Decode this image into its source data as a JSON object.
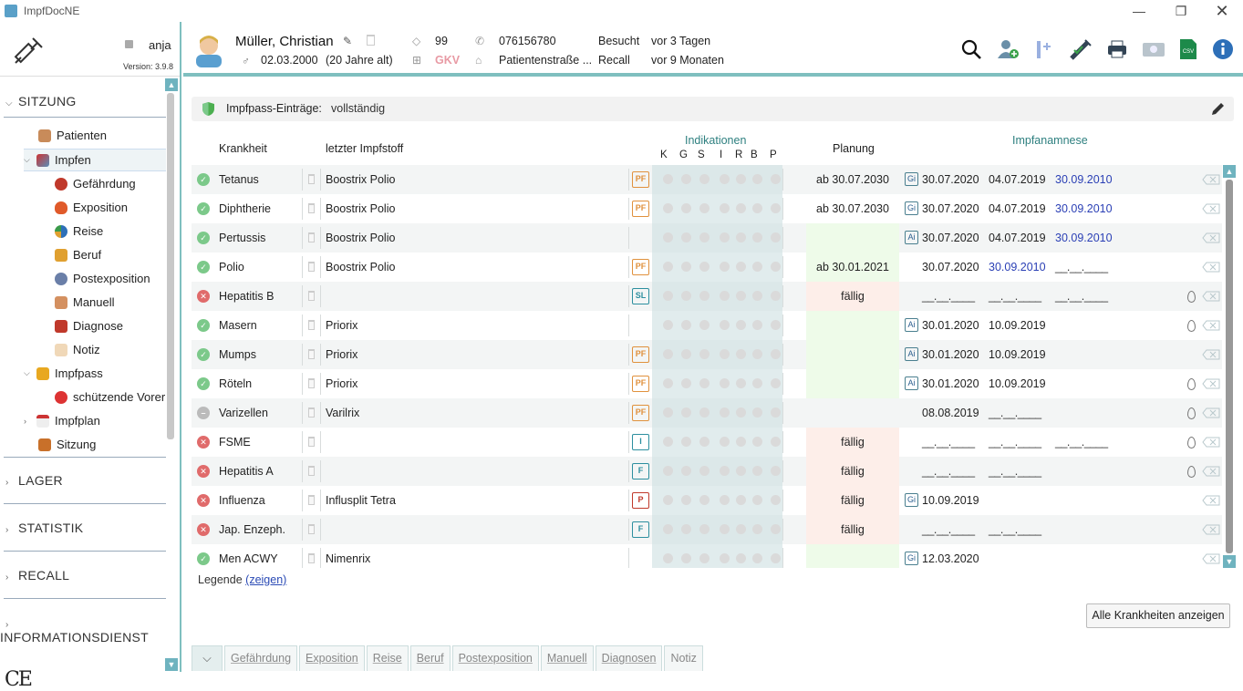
{
  "window": {
    "title": "ImpfDocNE"
  },
  "sidebar": {
    "user": "anja",
    "version": "Version: 3.9.8",
    "sections": {
      "sitzung": "SITZUNG",
      "lager": "LAGER",
      "statistik": "STATISTIK",
      "recall": "RECALL",
      "informationsdienst": "INFORMATIONSDIENST"
    },
    "items": {
      "patienten": "Patienten",
      "impfen": "Impfen",
      "gefaehrdung": "Gefährdung",
      "exposition": "Exposition",
      "reise": "Reise",
      "beruf": "Beruf",
      "postexposition": "Postexposition",
      "manuell": "Manuell",
      "diagnose": "Diagnose",
      "notiz": "Notiz",
      "impfpass": "Impfpass",
      "schuetzende": "schützende Vorer",
      "impfplan": "Impfplan",
      "sitzung": "Sitzung"
    },
    "ce_mark": "CE"
  },
  "patient": {
    "name": "Müller, Christian",
    "dob": "02.03.2000",
    "age": "(20 Jahre alt)",
    "id": "99",
    "insurance": "GKV",
    "phone": "076156780",
    "address": "Patientenstraße ...",
    "besucht_label": "Besucht",
    "besucht_value": "vor 3 Tagen",
    "recall_label": "Recall",
    "recall_value": "vor 9 Monaten"
  },
  "status": {
    "label": "Impfpass-Einträge:",
    "value": "vollständig"
  },
  "table": {
    "headers": {
      "krankheit": "Krankheit",
      "impfstoff": "letzter Impfstoff",
      "indikationen": "Indikationen",
      "planung": "Planung",
      "anamnese": "Impfanamnese",
      "indic_letters": [
        "K",
        "G",
        "S",
        "I",
        "R",
        "B",
        "P"
      ]
    },
    "rows": [
      {
        "status": "ok",
        "name": "Tetanus",
        "vaccine": "Boostrix Polio",
        "badge": "PF",
        "plan": "ab 30.07.2030",
        "plan_state": "",
        "src": "Gi",
        "d1": "30.07.2020",
        "d2": "04.07.2019",
        "d3": "30.09.2010",
        "d3blue": true,
        "drop": false
      },
      {
        "status": "ok",
        "name": "Diphtherie",
        "vaccine": "Boostrix Polio",
        "badge": "PF",
        "plan": "ab 30.07.2030",
        "plan_state": "",
        "src": "Gi",
        "d1": "30.07.2020",
        "d2": "04.07.2019",
        "d3": "30.09.2010",
        "d3blue": true,
        "drop": false
      },
      {
        "status": "ok",
        "name": "Pertussis",
        "vaccine": "Boostrix Polio",
        "badge": "",
        "plan": "",
        "plan_state": "green",
        "src": "Ai",
        "d1": "30.07.2020",
        "d2": "04.07.2019",
        "d3": "30.09.2010",
        "d3blue": true,
        "drop": false
      },
      {
        "status": "ok",
        "name": "Polio",
        "vaccine": "Boostrix Polio",
        "badge": "PF",
        "plan": "ab 30.01.2021",
        "plan_state": "green",
        "src": "",
        "d1": "30.07.2020",
        "d2": "30.09.2010",
        "d2blue": true,
        "d3": "__.__.____",
        "drop": false
      },
      {
        "status": "no",
        "name": "Hepatitis B",
        "vaccine": "",
        "badge": "SL",
        "plan": "fällig",
        "plan_state": "red",
        "src": "",
        "d1": "__.__.____",
        "d2": "__.__.____",
        "d3": "__.__.____",
        "drop": true
      },
      {
        "status": "ok",
        "name": "Masern",
        "vaccine": "Priorix",
        "badge": "",
        "plan": "",
        "plan_state": "green",
        "src": "Ai",
        "d1": "30.01.2020",
        "d2": "10.09.2019",
        "d3": "",
        "drop": true
      },
      {
        "status": "ok",
        "name": "Mumps",
        "vaccine": "Priorix",
        "badge": "PF",
        "plan": "",
        "plan_state": "green",
        "src": "Ai",
        "d1": "30.01.2020",
        "d2": "10.09.2019",
        "d3": "",
        "drop": false
      },
      {
        "status": "ok",
        "name": "Röteln",
        "vaccine": "Priorix",
        "badge": "PF",
        "plan": "",
        "plan_state": "green",
        "src": "Ai",
        "d1": "30.01.2020",
        "d2": "10.09.2019",
        "d3": "",
        "drop": true
      },
      {
        "status": "na",
        "name": "Varizellen",
        "vaccine": "Varilrix",
        "badge": "PF",
        "plan": "",
        "plan_state": "",
        "src": "",
        "d1": "08.08.2019",
        "d2": "__.__.____",
        "d3": "",
        "drop": true
      },
      {
        "status": "no",
        "name": "FSME",
        "vaccine": "",
        "badge": "I",
        "plan": "fällig",
        "plan_state": "red",
        "src": "",
        "d1": "__.__.____",
        "d2": "__.__.____",
        "d3": "__.__.____",
        "drop": true
      },
      {
        "status": "no",
        "name": "Hepatitis A",
        "vaccine": "",
        "badge": "F",
        "plan": "fällig",
        "plan_state": "red",
        "src": "",
        "d1": "__.__.____",
        "d2": "__.__.____",
        "d3": "",
        "drop": true
      },
      {
        "status": "no",
        "name": "Influenza",
        "vaccine": "Influsplit Tetra",
        "badge": "P",
        "plan": "fällig",
        "plan_state": "red",
        "src": "Gi",
        "d1": "10.09.2019",
        "d2": "",
        "d3": "",
        "drop": false
      },
      {
        "status": "no",
        "name": "Jap. Enzeph.",
        "vaccine": "",
        "badge": "F",
        "plan": "fällig",
        "plan_state": "red",
        "src": "",
        "d1": "__.__.____",
        "d2": "__.__.____",
        "d3": "",
        "drop": false
      },
      {
        "status": "ok",
        "name": "Men ACWY",
        "vaccine": "Nimenrix",
        "badge": "",
        "plan": "",
        "plan_state": "green",
        "src": "Gi",
        "d1": "12.03.2020",
        "d2": "",
        "d3": "",
        "drop": false
      }
    ]
  },
  "legend": {
    "label": "Legende",
    "link": "(zeigen)"
  },
  "buttons": {
    "show_all": "Alle Krankheiten anzeigen"
  },
  "bottom_tabs": {
    "expand": "⌵",
    "gefaehrdung": "Gefährdung",
    "exposition": "Exposition",
    "reise": "Reise",
    "beruf": "Beruf",
    "postexposition": "Postexposition",
    "manuell": "Manuell",
    "diagnosen": "Diagnosen",
    "notiz": "Notiz"
  },
  "icons": {
    "edit": "pencil-icon",
    "search": "search-icon",
    "add_patient": "add-patient-icon",
    "print": "printer-icon",
    "info": "info-icon"
  },
  "colors": {
    "accent": "#7fbfbf",
    "ok": "#7cc98a",
    "missing": "#e06b6b",
    "badge_orange": "#e0913d",
    "date_blue": "#2a3fb5"
  }
}
